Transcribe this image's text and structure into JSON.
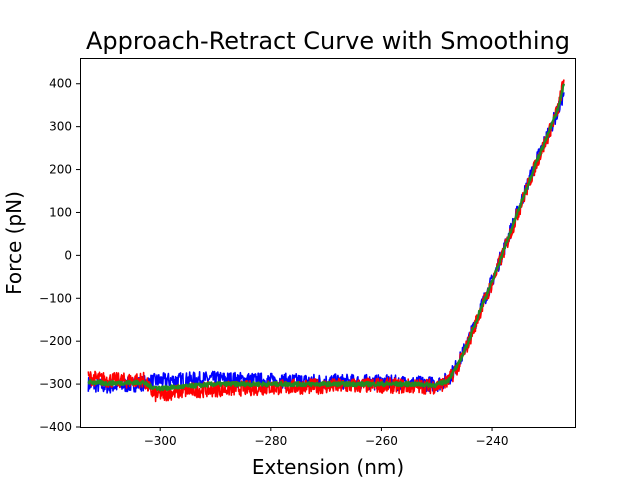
{
  "chart_data": {
    "type": "line",
    "title": "Approach-Retract Curve with Smoothing",
    "xlabel": "Extension (nm)",
    "ylabel": "Force (pN)",
    "xlim": [
      -314.5,
      -225.0
    ],
    "ylim": [
      -400,
      460
    ],
    "xticks": [
      -300,
      -280,
      -260,
      -240
    ],
    "xtick_labels": [
      "−300",
      "−280",
      "−260",
      "−240"
    ],
    "yticks": [
      -400,
      -300,
      -200,
      -100,
      0,
      100,
      200,
      300,
      400
    ],
    "ytick_labels": [
      "−400",
      "−300",
      "−200",
      "−100",
      "0",
      "100",
      "200",
      "300",
      "400"
    ],
    "grid": false,
    "legend": "none",
    "series": [
      {
        "color": "#0000ff",
        "noise": 18,
        "x": [
          -313,
          -310,
          -306,
          -303,
          -302,
          -300,
          -295,
          -290,
          -285,
          -280,
          -275,
          -270,
          -265,
          -260,
          -255,
          -250,
          -248,
          -246,
          -244,
          -242,
          -240,
          -238,
          -236,
          -234,
          -232,
          -230,
          -228,
          -227
        ],
        "y": [
          -300,
          -305,
          -302,
          -298,
          -295,
          -292,
          -290,
          -288,
          -290,
          -292,
          -293,
          -294,
          -295,
          -296,
          -298,
          -300,
          -290,
          -250,
          -190,
          -120,
          -60,
          10,
          80,
          150,
          220,
          280,
          340,
          380
        ]
      },
      {
        "color": "#ff0000",
        "noise": 18,
        "x": [
          -313,
          -310,
          -306,
          -303,
          -302,
          -301,
          -298,
          -295,
          -290,
          -285,
          -280,
          -275,
          -270,
          -265,
          -260,
          -255,
          -250,
          -248,
          -246,
          -244,
          -242,
          -240,
          -238,
          -236,
          -234,
          -232,
          -230,
          -228,
          -227
        ],
        "y": [
          -285,
          -290,
          -292,
          -290,
          -310,
          -325,
          -320,
          -315,
          -312,
          -310,
          -308,
          -306,
          -305,
          -304,
          -303,
          -305,
          -305,
          -295,
          -255,
          -195,
          -125,
          -65,
          5,
          75,
          145,
          215,
          275,
          345,
          410
        ]
      },
      {
        "color": "#228b22",
        "noise": 5,
        "x": [
          -313,
          -310,
          -306,
          -303,
          -302,
          -300,
          -295,
          -290,
          -285,
          -280,
          -275,
          -270,
          -265,
          -260,
          -255,
          -250,
          -248,
          -246,
          -244,
          -242,
          -240,
          -238,
          -236,
          -234,
          -232,
          -230,
          -228,
          -227
        ],
        "y": [
          -295,
          -298,
          -297,
          -296,
          -305,
          -310,
          -305,
          -300,
          -300,
          -300,
          -300,
          -300,
          -300,
          -300,
          -300,
          -302,
          -292,
          -252,
          -192,
          -122,
          -62,
          8,
          78,
          148,
          218,
          278,
          345,
          400
        ]
      }
    ]
  }
}
